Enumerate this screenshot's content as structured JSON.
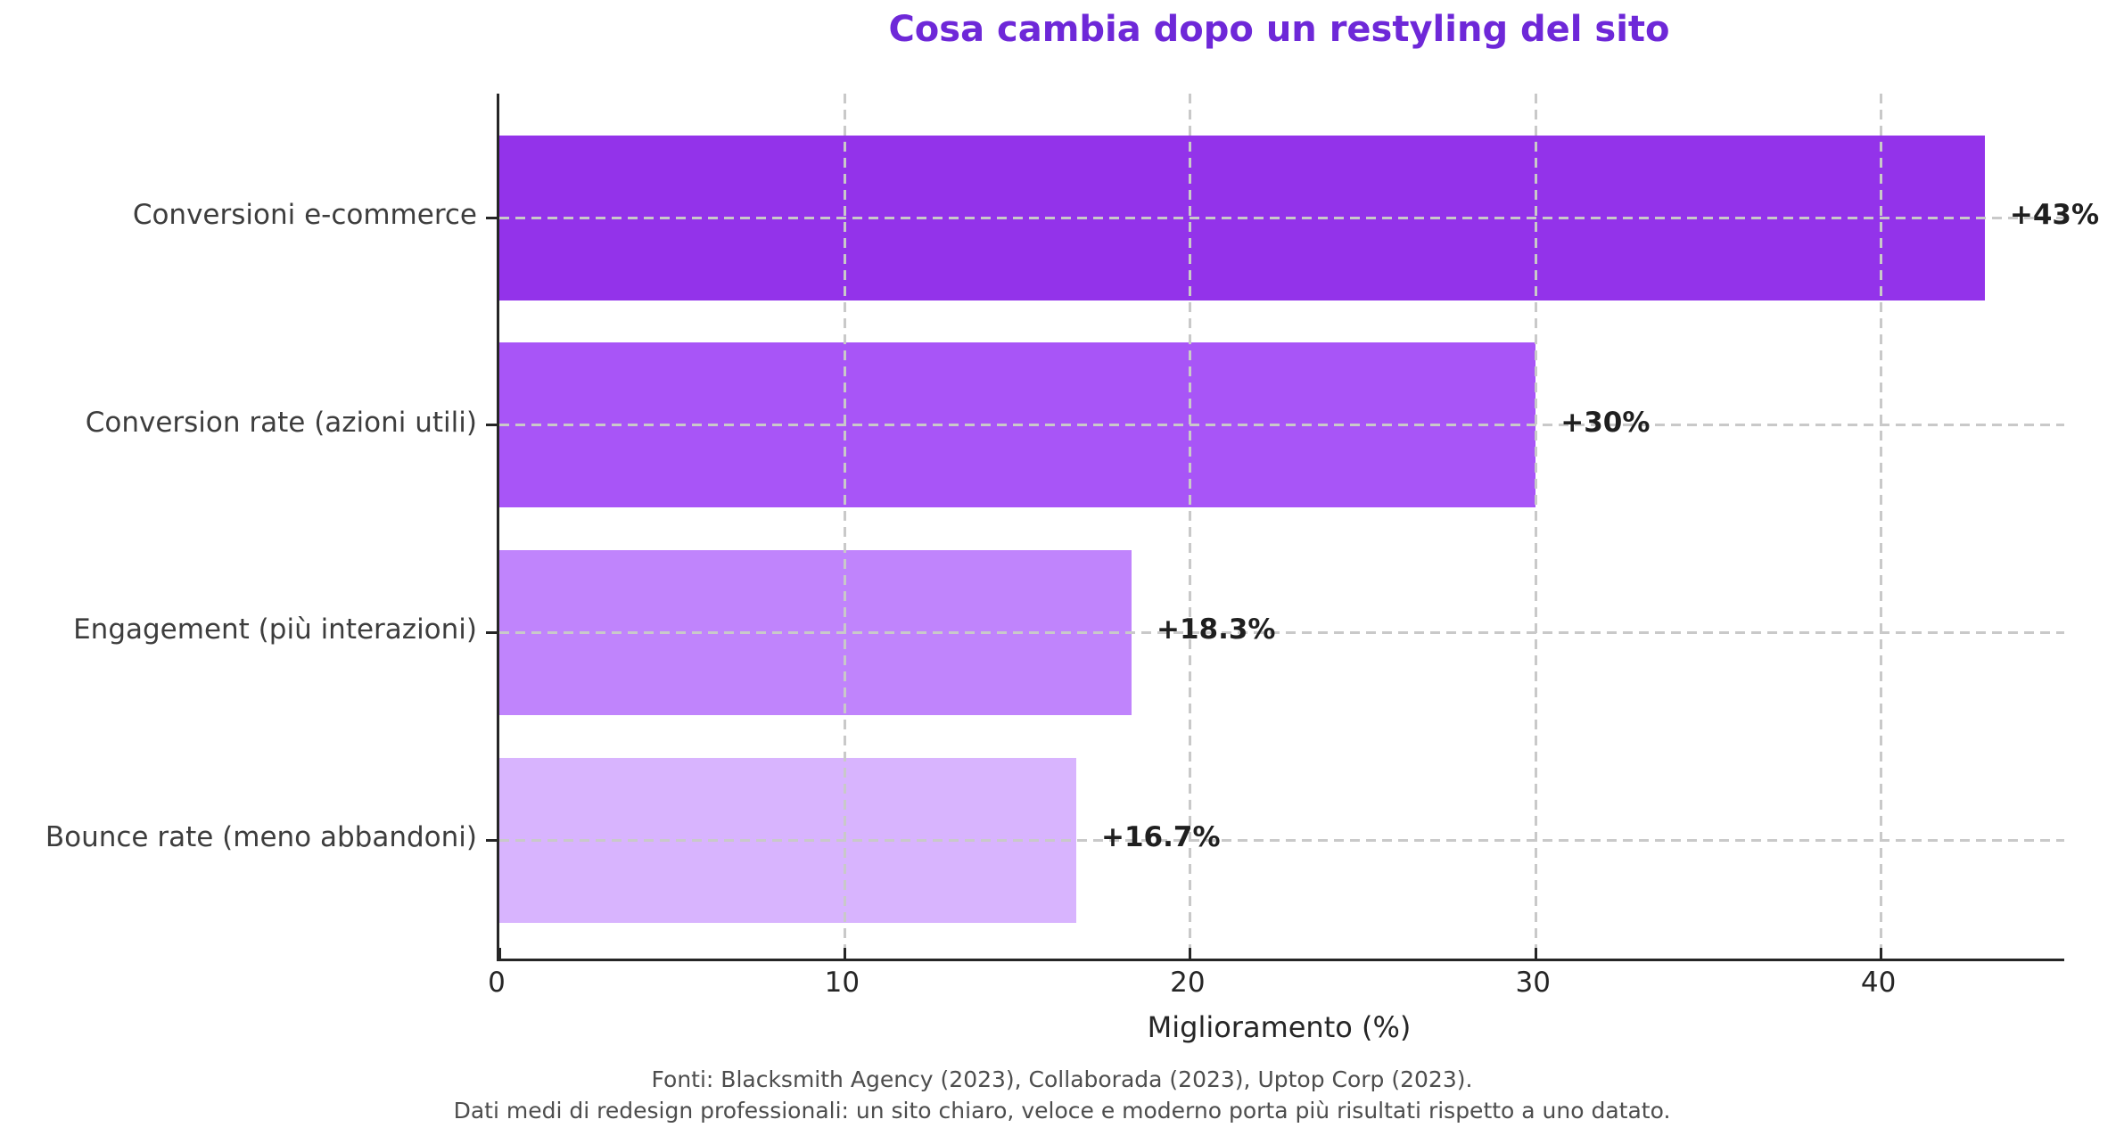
{
  "chart_data": {
    "type": "bar",
    "orientation": "horizontal",
    "title": "Cosa cambia dopo un restyling del sito",
    "title_color": "#6e28d8",
    "categories": [
      "Conversioni e-commerce",
      "Conversion rate (azioni utili)",
      "Engagement (più interazioni)",
      "Bounce rate (meno abbandoni)"
    ],
    "values": [
      43,
      30,
      18.3,
      16.7
    ],
    "value_labels": [
      "+43%",
      "+30%",
      "+18.3%",
      "+16.7%"
    ],
    "bar_colors": [
      "#9333ea",
      "#a855f7",
      "#c084fc",
      "#d8b4fe"
    ],
    "xlabel": "Miglioramento (%)",
    "xlim": [
      0,
      45.3
    ],
    "xticks": [
      0,
      10,
      20,
      30,
      40
    ],
    "grid": "dashed, vertical at xticks and horizontal at bar centers",
    "legend": "none"
  },
  "footer": {
    "line1": "Fonti: Blacksmith Agency (2023), Collaborada (2023), Uptop Corp (2023).",
    "line2": "Dati medi di redesign professionali: un sito chiaro, veloce e moderno porta più risultati rispetto a uno datato."
  }
}
